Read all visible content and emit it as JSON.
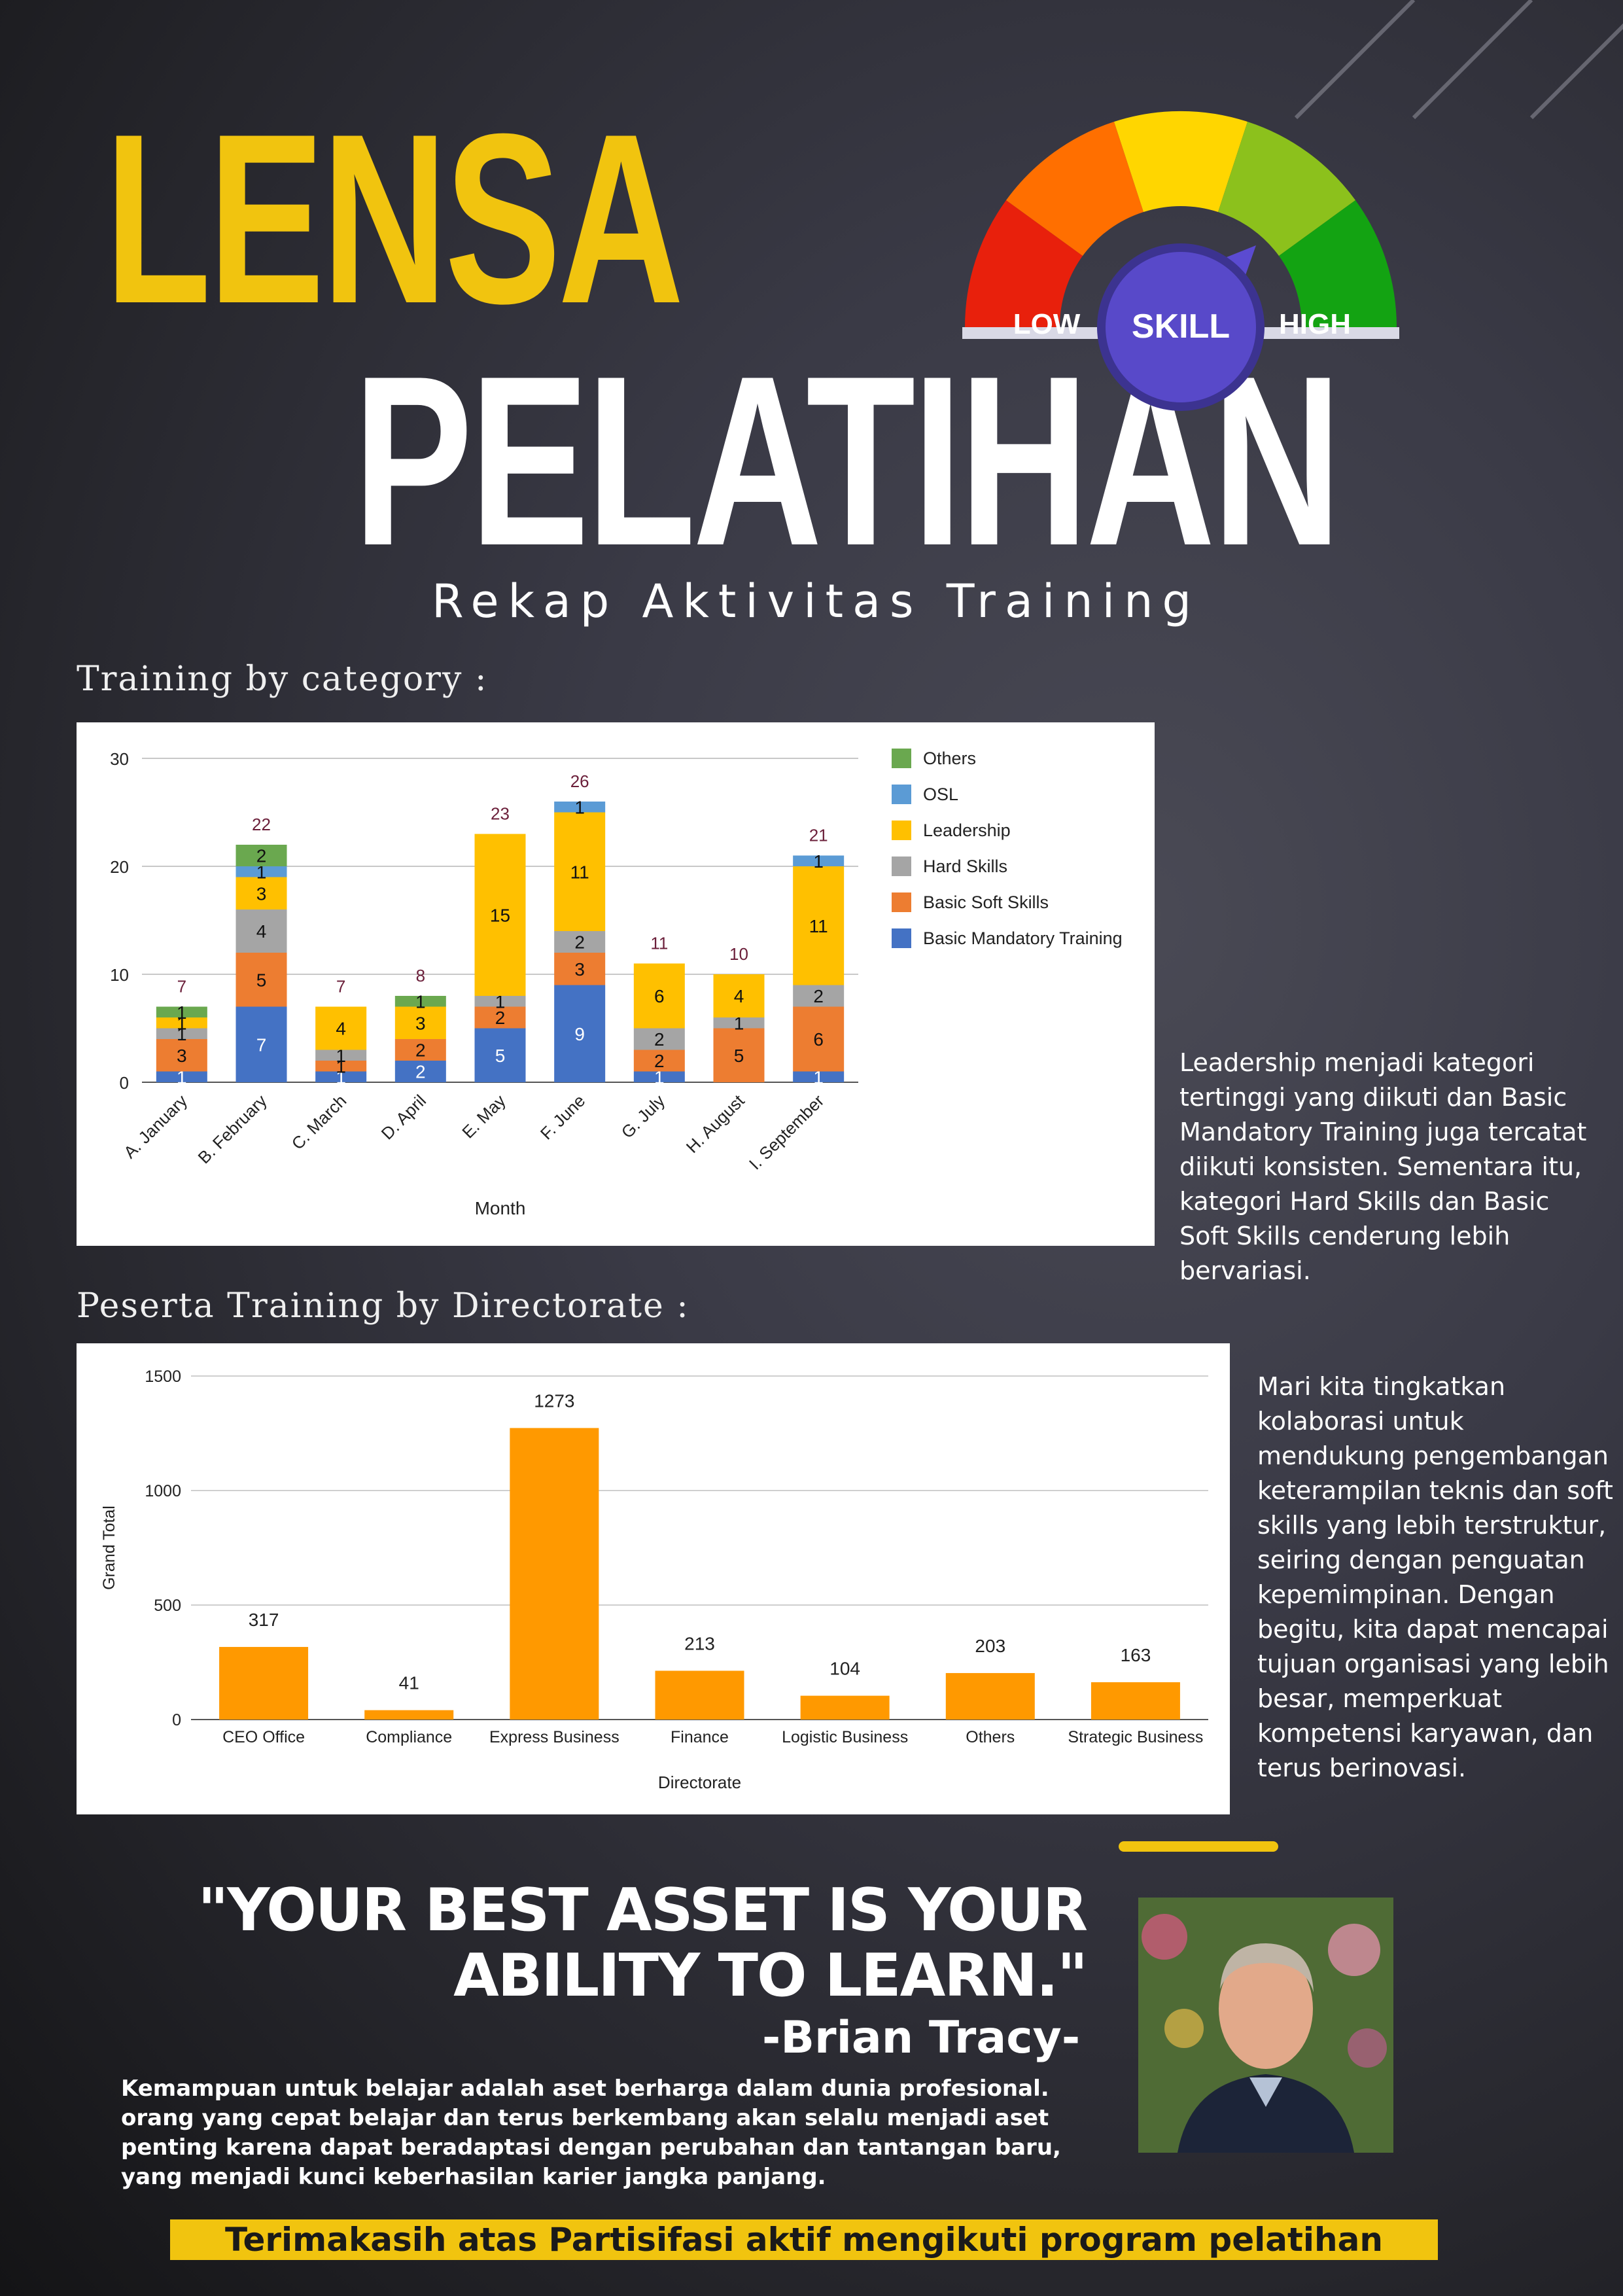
{
  "header": {
    "title_line1": "LENSA",
    "title_line2": "PELATIHAN",
    "subtitle": "Rekap Aktivitas Training",
    "gauge": {
      "low": "LOW",
      "center": "SKILL",
      "high": "HIGH"
    }
  },
  "section1": {
    "heading": "Training by category :",
    "note": "Leadership menjadi kategori tertinggi yang diikuti dan Basic Mandatory Training juga tercatat diikuti konsisten. Sementara itu, kategori Hard Skills dan Basic Soft Skills cenderung lebih bervariasi."
  },
  "section2": {
    "heading": "Peserta Training by Directorate :",
    "note": "Mari kita tingkatkan kolaborasi untuk mendukung pengembangan keterampilan teknis dan soft skills yang lebih terstruktur, seiring dengan penguatan kepemimpinan. Dengan begitu, kita dapat mencapai tujuan organisasi yang lebih besar, memperkuat kompetensi karyawan, dan terus berinovasi."
  },
  "quote": {
    "text": "\"YOUR BEST ASSET IS YOUR\nABILITY TO LEARN.\"",
    "author": "-Brian Tracy-",
    "description": "Kemampuan untuk belajar adalah aset berharga dalam dunia profesional. orang yang cepat belajar dan terus berkembang akan selalu menjadi aset penting karena dapat beradaptasi dengan perubahan dan tantangan baru, yang menjadi kunci keberhasilan karier jangka panjang."
  },
  "footer": "Terimakasih atas Partisifasi aktif mengikuti program pelatihan",
  "colors": {
    "accent_yellow": "#f1c40f",
    "others": "#6aa84f",
    "osl": "#5b9bd5",
    "leadership": "#ffc000",
    "hard_skills": "#a5a5a5",
    "basic_soft_skills": "#ed7d31",
    "basic_mandatory": "#4472c4",
    "directorate_bar": "#ff9900"
  },
  "chart_data": [
    {
      "type": "bar",
      "stacked": true,
      "xlabel": "Month",
      "ylabel": "",
      "ylim": [
        0,
        30
      ],
      "yticks": [
        0,
        10,
        20,
        30
      ],
      "categories": [
        "A. January",
        "B. February",
        "C. March",
        "D. April",
        "E. May",
        "F. June",
        "G. July",
        "H. August",
        "I. September"
      ],
      "totals": [
        7,
        22,
        7,
        8,
        23,
        26,
        11,
        10,
        21
      ],
      "legend_position": "right",
      "series": [
        {
          "name": "Basic Mandatory Training",
          "color": "#4472c4",
          "values": [
            1,
            7,
            1,
            2,
            5,
            9,
            1,
            0,
            1
          ]
        },
        {
          "name": "Basic Soft Skills",
          "color": "#ed7d31",
          "values": [
            3,
            5,
            1,
            2,
            2,
            3,
            2,
            5,
            6
          ]
        },
        {
          "name": "Hard Skills",
          "color": "#a5a5a5",
          "values": [
            1,
            4,
            1,
            0,
            1,
            2,
            2,
            1,
            2
          ]
        },
        {
          "name": "Leadership",
          "color": "#ffc000",
          "values": [
            1,
            3,
            4,
            3,
            15,
            11,
            6,
            4,
            11
          ]
        },
        {
          "name": "OSL",
          "color": "#5b9bd5",
          "values": [
            0,
            1,
            0,
            0,
            0,
            1,
            0,
            0,
            1
          ]
        },
        {
          "name": "Others",
          "color": "#6aa84f",
          "values": [
            1,
            2,
            0,
            1,
            0,
            0,
            0,
            0,
            0
          ]
        }
      ]
    },
    {
      "type": "bar",
      "xlabel": "Directorate",
      "ylabel": "Grand Total",
      "ylim": [
        0,
        1500
      ],
      "yticks": [
        0,
        500,
        1000,
        1500
      ],
      "categories": [
        "CEO Office",
        "Compliance",
        "Express Business",
        "Finance",
        "Logistic Business",
        "Others",
        "Strategic Business"
      ],
      "values": [
        317,
        41,
        1273,
        213,
        104,
        203,
        163
      ],
      "color": "#ff9900"
    }
  ]
}
